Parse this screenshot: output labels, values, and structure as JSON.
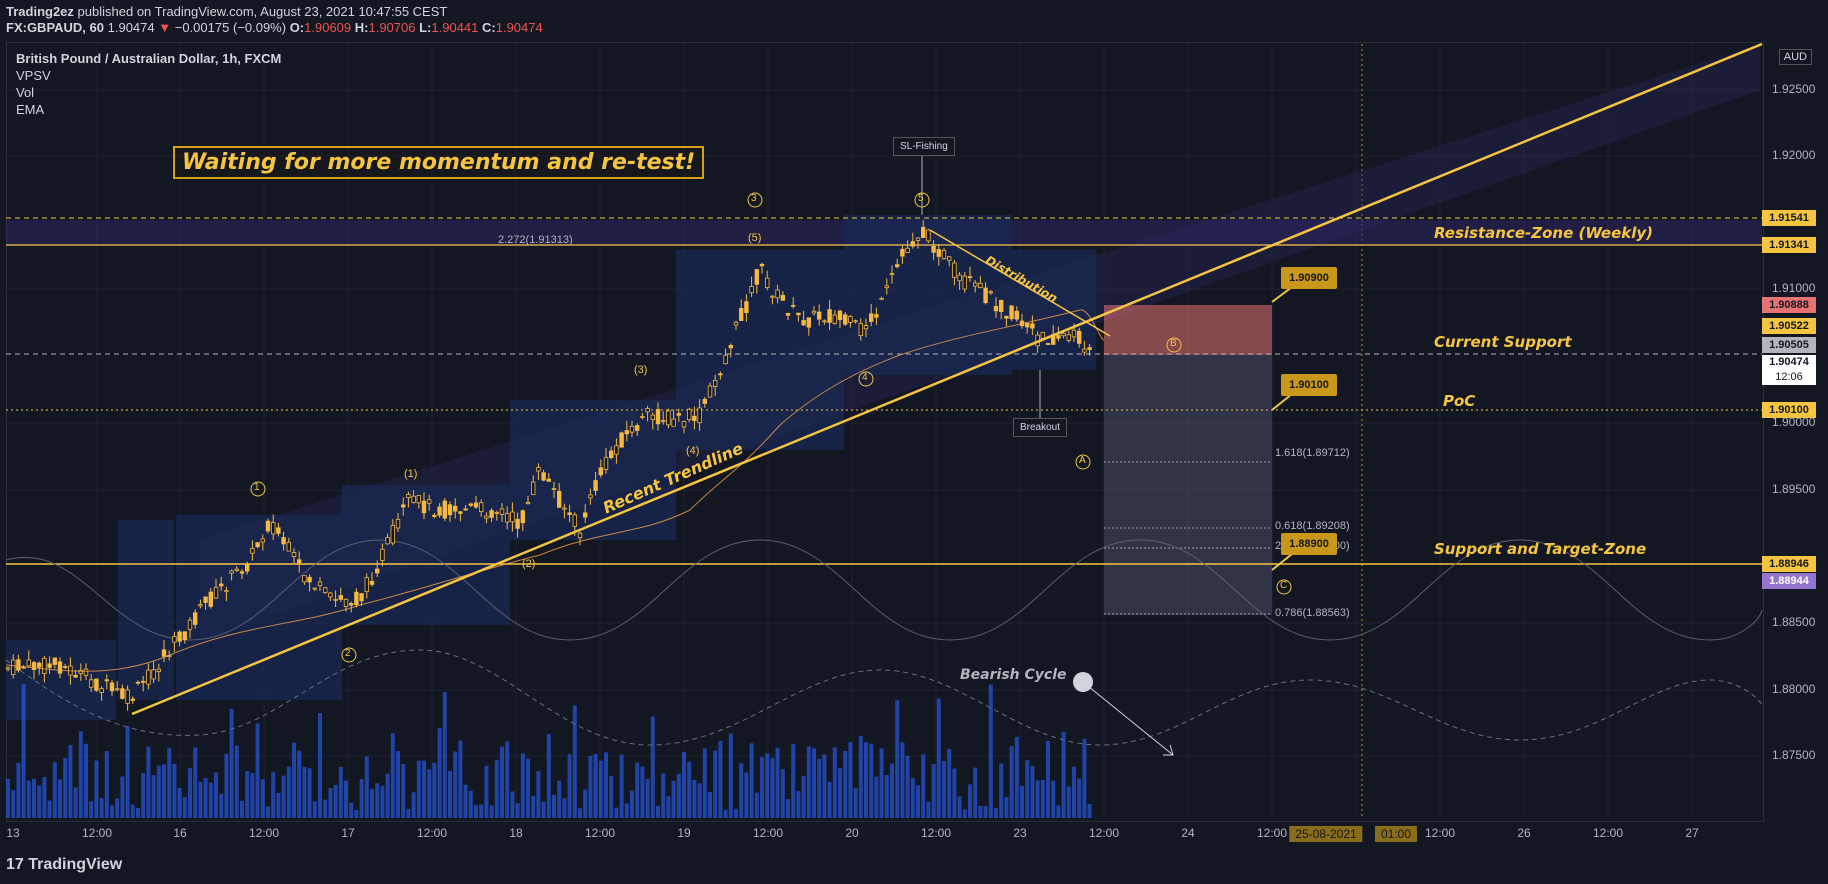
{
  "header": {
    "publisher": "Trading2ez",
    "published_text": "published on TradingView.com, August 23, 2021 10:47:55 CEST",
    "symbol": "FX:GBPAUD, 60",
    "last": "1.90474",
    "change": "−0.00175 (−0.09%)",
    "open_label": "O:",
    "open": "1.90609",
    "high_label": "H:",
    "high": "1.90706",
    "low_label": "L:",
    "low": "1.90441",
    "close_label": "C:",
    "close": "1.90474"
  },
  "legend": {
    "title": "British Pound / Australian Dollar, 1h, FXCM",
    "indicators": [
      "VPSV",
      "Vol",
      "EMA"
    ]
  },
  "currency_button": "AUD",
  "annotations": {
    "callout": "Waiting for more momentum and re-test!",
    "resistance_zone": "Resistance-Zone (Weekly)",
    "current_support": "Current Support",
    "poc": "PoC",
    "support_target": "Support and Target-Zone",
    "recent_trendline": "Recent Trendline",
    "distribution": "Distribution",
    "bearish_cycle": "Bearish Cycle",
    "sl_fishing": "SL-Fishing",
    "breakout": "Breakout",
    "fib_2272_top": "2.272(1.91313)",
    "fib_1618": "1.618(1.89712)",
    "fib_0618": "0.618(1.89208)",
    "fib_2272_bottom": "2.272(1.89000)",
    "fib_0786": "0.786(1.88563)",
    "target_1": "1.90900",
    "target_2": "1.90100",
    "target_3": "1.88900",
    "waves": {
      "c1": "1",
      "c2": "2",
      "c3": "3",
      "c4": "4",
      "c5": "5",
      "p1": "(1)",
      "p2": "(2)",
      "p3": "(3)",
      "p4": "(4)",
      "p5": "(5)",
      "A": "A",
      "B": "B",
      "C": "C"
    }
  },
  "price_axis": {
    "ticks": [
      "1.92500",
      "1.92000",
      "1.91000",
      "1.90000",
      "1.89500",
      "1.88500",
      "1.88000",
      "1.87500"
    ],
    "tags": [
      {
        "value": "1.91541",
        "bg": "#f5c542"
      },
      {
        "value": "1.91341",
        "bg": "#f5c542"
      },
      {
        "value": "1.90888",
        "bg": "#e57373"
      },
      {
        "value": "1.90522",
        "bg": "#f5c542"
      },
      {
        "value": "1.90505",
        "bg": "#b2b5be"
      },
      {
        "value": "1.90474",
        "bg": "#ffffff"
      },
      {
        "value": "1.90100",
        "bg": "#f5c542"
      },
      {
        "value": "1.88946",
        "bg": "#f5c542"
      },
      {
        "value": "1.88944",
        "bg": "#9575cd"
      }
    ],
    "countdown": "12:06"
  },
  "time_axis": {
    "labels": [
      "13",
      "12:00",
      "16",
      "12:00",
      "17",
      "12:00",
      "18",
      "12:00",
      "19",
      "12:00",
      "20",
      "12:00",
      "23",
      "12:00",
      "24",
      "12:00",
      "25-08-2021",
      "01:00",
      "12:00",
      "26",
      "12:00",
      "27"
    ]
  },
  "footer": {
    "brand": "TradingView"
  },
  "colors": {
    "background": "#131722",
    "candle": "#f5b942",
    "accent": "#f5c542",
    "volume": "#2962ff",
    "resistance_fill": "#2d2560",
    "short_zone_red": "#e57373"
  }
}
